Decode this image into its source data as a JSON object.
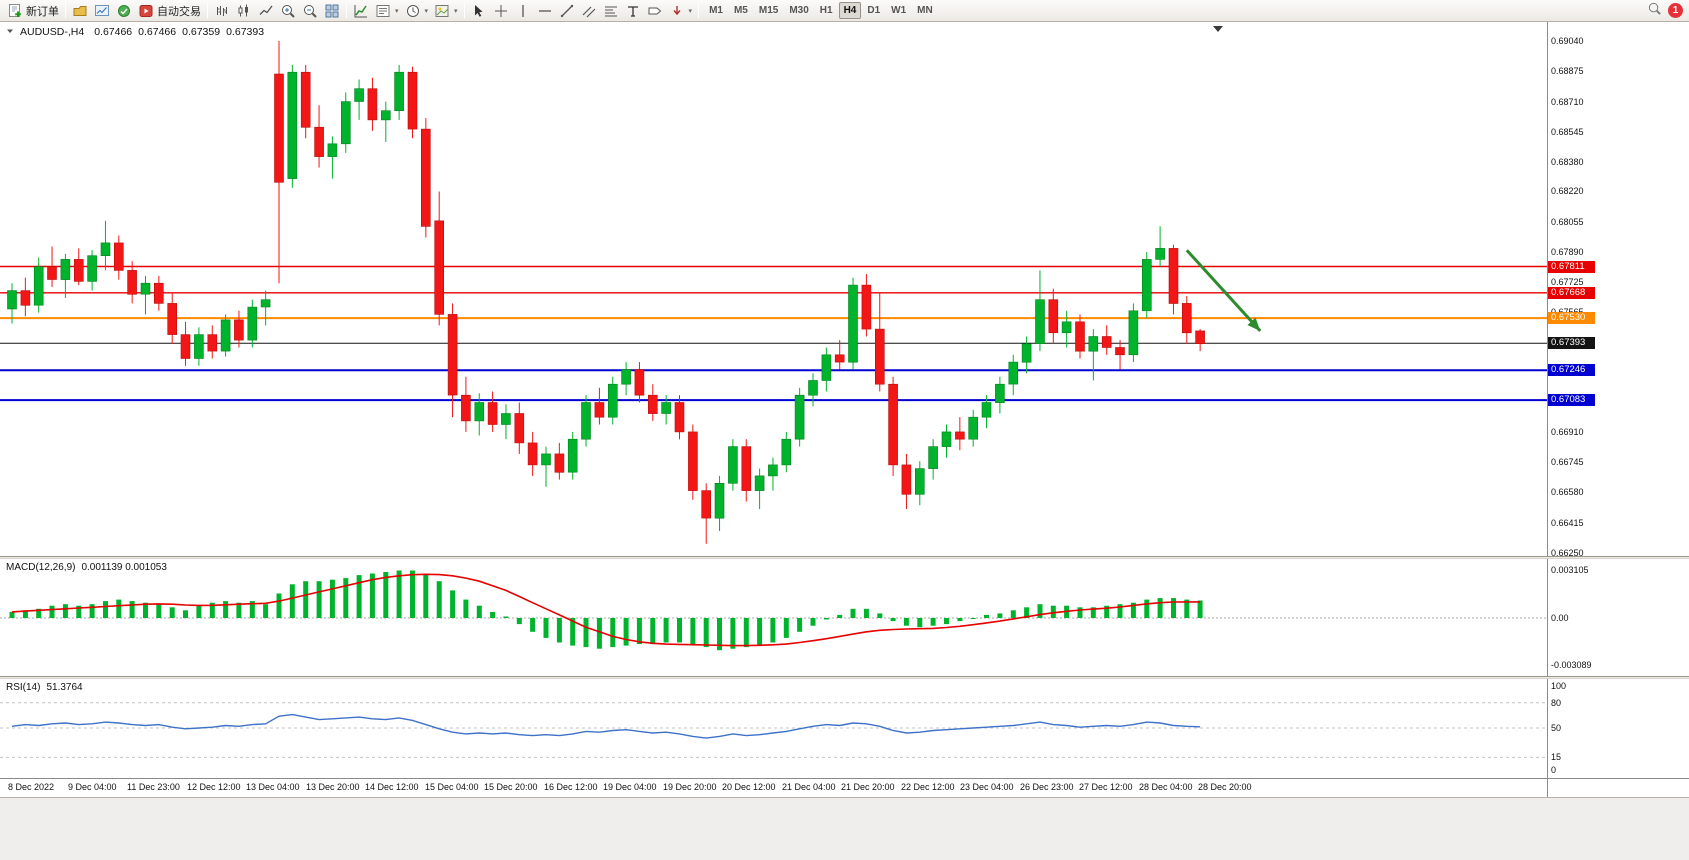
{
  "toolbar": {
    "new_order_label": "新订单",
    "autotrade_label": "自动交易",
    "notification_badge": "1",
    "timeframes": [
      {
        "label": "M1",
        "active": false
      },
      {
        "label": "M5",
        "active": false
      },
      {
        "label": "M15",
        "active": false
      },
      {
        "label": "M30",
        "active": false
      },
      {
        "label": "H1",
        "active": false
      },
      {
        "label": "H4",
        "active": true
      },
      {
        "label": "D1",
        "active": false
      },
      {
        "label": "W1",
        "active": false
      },
      {
        "label": "MN",
        "active": false
      }
    ]
  },
  "icons": {
    "new-order-icon": "document-plus",
    "profiles-icon": "folder",
    "charts-icon": "chart-window",
    "market-watch-icon": "green-circle",
    "autotrade-icon": "red-play",
    "bars-icon": "ohlc-bars",
    "candles-icon": "candlesticks",
    "line-chart-icon": "zigzag-line",
    "zoom-in-icon": "magnifier-plus",
    "zoom-out-icon": "magnifier-minus",
    "tile-windows-icon": "grid-2x2",
    "indicators-icon": "chart-arrow",
    "indicator-list-icon": "list",
    "period-icon": "clock",
    "template-icon": "picture",
    "cursor-icon": "pointer-arrow",
    "crosshair-icon": "cross",
    "vline-icon": "vertical-line",
    "hline-icon": "horizontal-line",
    "trendline-icon": "diagonal-line",
    "channel-icon": "parallel-lines",
    "fibo-icon": "stacked-lines",
    "text-icon": "letter-A",
    "label-icon": "tag",
    "arrows-icon": "down-arrow",
    "search-icon": "magnifier",
    "collapse-icon": "triangle-down",
    "chart-shift-marker": "triangle-down"
  },
  "chart": {
    "symbol_period": "AUDUSD-,H4",
    "open": "0.67466",
    "high": "0.67466",
    "low": "0.67359",
    "close": "0.67393"
  },
  "indicators": {
    "macd_label": "MACD(12,26,9)",
    "macd_values": "0.001139 0.001053",
    "rsi_label": "RSI(14)",
    "rsi_value": "51.3764"
  },
  "chart_data": [
    {
      "type": "candlestick",
      "symbol": "AUDUSD",
      "timeframe": "H4",
      "ohlc_display": [
        "0.67466",
        "0.67466",
        "0.67359",
        "0.67393"
      ],
      "up_color": "#00b32c",
      "down_color": "#f21616",
      "y_ticks": [
        "0.69040",
        "0.68875",
        "0.68710",
        "0.68545",
        "0.68380",
        "0.68220",
        "0.68055",
        "0.67890",
        "0.67725",
        "0.67565",
        "0.66910",
        "0.66745",
        "0.66580",
        "0.66415",
        "0.66250"
      ],
      "price_lines": [
        {
          "label": "0.67811",
          "color": "#e60000",
          "width": 1.4
        },
        {
          "label": "0.67668",
          "color": "#e60000",
          "width": 1.4
        },
        {
          "label": "0.67530",
          "color": "#ff8a00",
          "width": 2
        },
        {
          "label": "0.67393",
          "color": "#141414",
          "width": 1
        },
        {
          "label": "0.67246",
          "color": "#0000d0",
          "width": 2
        },
        {
          "label": "0.67083",
          "color": "#0000d0",
          "width": 2
        }
      ],
      "x_labels": [
        "8 Dec 2022",
        "9 Dec 04:00",
        "11 Dec 23:00",
        "12 Dec 12:00",
        "13 Dec 04:00",
        "13 Dec 20:00",
        "14 Dec 12:00",
        "15 Dec 04:00",
        "15 Dec 20:00",
        "16 Dec 12:00",
        "19 Dec 04:00",
        "19 Dec 20:00",
        "20 Dec 12:00",
        "21 Dec 04:00",
        "21 Dec 20:00",
        "22 Dec 12:00",
        "23 Dec 04:00",
        "26 Dec 23:00",
        "27 Dec 12:00",
        "28 Dec 04:00",
        "28 Dec 20:00"
      ],
      "candles": [
        [
          0.6758,
          0.6772,
          0.675,
          0.6768
        ],
        [
          0.6768,
          0.6775,
          0.6754,
          0.676
        ],
        [
          0.676,
          0.6786,
          0.6756,
          0.6781
        ],
        [
          0.6781,
          0.6792,
          0.677,
          0.6774
        ],
        [
          0.6774,
          0.6788,
          0.6764,
          0.6785
        ],
        [
          0.6785,
          0.6791,
          0.6771,
          0.6773
        ],
        [
          0.6773,
          0.679,
          0.6768,
          0.6787
        ],
        [
          0.6787,
          0.6806,
          0.6779,
          0.6794
        ],
        [
          0.6794,
          0.6798,
          0.6774,
          0.6779
        ],
        [
          0.6779,
          0.6784,
          0.6761,
          0.6766
        ],
        [
          0.6766,
          0.6776,
          0.6755,
          0.6772
        ],
        [
          0.6772,
          0.6776,
          0.6757,
          0.6761
        ],
        [
          0.6761,
          0.6767,
          0.6739,
          0.6744
        ],
        [
          0.6744,
          0.6751,
          0.6727,
          0.6731
        ],
        [
          0.6731,
          0.6748,
          0.6727,
          0.6744
        ],
        [
          0.6744,
          0.6749,
          0.6731,
          0.6735
        ],
        [
          0.6735,
          0.6755,
          0.6732,
          0.6752
        ],
        [
          0.6752,
          0.6757,
          0.6737,
          0.6741
        ],
        [
          0.6741,
          0.6763,
          0.6737,
          0.6759
        ],
        [
          0.6759,
          0.6768,
          0.6749,
          0.6763
        ],
        [
          0.6886,
          0.6904,
          0.6772,
          0.6827
        ],
        [
          0.6829,
          0.6891,
          0.6824,
          0.6887
        ],
        [
          0.6887,
          0.6891,
          0.6851,
          0.6857
        ],
        [
          0.6857,
          0.6869,
          0.6835,
          0.6841
        ],
        [
          0.6841,
          0.6852,
          0.6829,
          0.6848
        ],
        [
          0.6848,
          0.6876,
          0.6843,
          0.6871
        ],
        [
          0.6871,
          0.6883,
          0.6861,
          0.6878
        ],
        [
          0.6878,
          0.6884,
          0.6855,
          0.6861
        ],
        [
          0.6861,
          0.6871,
          0.6849,
          0.6866
        ],
        [
          0.6866,
          0.6891,
          0.6861,
          0.6887
        ],
        [
          0.6887,
          0.689,
          0.6851,
          0.6856
        ],
        [
          0.6856,
          0.6862,
          0.6797,
          0.6803
        ],
        [
          0.6806,
          0.6822,
          0.6749,
          0.6755
        ],
        [
          0.6755,
          0.6761,
          0.6699,
          0.6711
        ],
        [
          0.6711,
          0.6721,
          0.6691,
          0.6697
        ],
        [
          0.6697,
          0.6712,
          0.6689,
          0.6707
        ],
        [
          0.6707,
          0.6713,
          0.6691,
          0.6695
        ],
        [
          0.6695,
          0.6706,
          0.6687,
          0.6701
        ],
        [
          0.6701,
          0.6707,
          0.6679,
          0.6685
        ],
        [
          0.6685,
          0.6691,
          0.6667,
          0.6673
        ],
        [
          0.6673,
          0.6683,
          0.6661,
          0.6679
        ],
        [
          0.6679,
          0.6685,
          0.6665,
          0.6669
        ],
        [
          0.6669,
          0.6691,
          0.6665,
          0.6687
        ],
        [
          0.6687,
          0.6711,
          0.6683,
          0.6707
        ],
        [
          0.6707,
          0.6715,
          0.6695,
          0.6699
        ],
        [
          0.6699,
          0.6721,
          0.6695,
          0.6717
        ],
        [
          0.6717,
          0.6729,
          0.6711,
          0.6725
        ],
        [
          0.6725,
          0.6729,
          0.6707,
          0.6711
        ],
        [
          0.6711,
          0.6717,
          0.6697,
          0.6701
        ],
        [
          0.6701,
          0.6711,
          0.6695,
          0.6707
        ],
        [
          0.6707,
          0.6711,
          0.6687,
          0.6691
        ],
        [
          0.6691,
          0.6695,
          0.6654,
          0.6659
        ],
        [
          0.6659,
          0.6663,
          0.663,
          0.6644
        ],
        [
          0.6644,
          0.6667,
          0.6637,
          0.6663
        ],
        [
          0.6663,
          0.6687,
          0.6659,
          0.6683
        ],
        [
          0.6683,
          0.6687,
          0.6653,
          0.6659
        ],
        [
          0.6659,
          0.6671,
          0.6649,
          0.6667
        ],
        [
          0.6667,
          0.6677,
          0.6659,
          0.6673
        ],
        [
          0.6673,
          0.6691,
          0.6669,
          0.6687
        ],
        [
          0.6687,
          0.6715,
          0.6683,
          0.6711
        ],
        [
          0.6711,
          0.6723,
          0.6705,
          0.6719
        ],
        [
          0.6719,
          0.6737,
          0.6713,
          0.6733
        ],
        [
          0.6733,
          0.6741,
          0.6725,
          0.6729
        ],
        [
          0.6729,
          0.6775,
          0.6725,
          0.6771
        ],
        [
          0.6771,
          0.6777,
          0.6743,
          0.6747
        ],
        [
          0.6747,
          0.6767,
          0.6713,
          0.6717
        ],
        [
          0.6717,
          0.6721,
          0.6667,
          0.6673
        ],
        [
          0.6673,
          0.6679,
          0.6649,
          0.6657
        ],
        [
          0.6657,
          0.6675,
          0.6651,
          0.6671
        ],
        [
          0.6671,
          0.6687,
          0.6665,
          0.6683
        ],
        [
          0.6683,
          0.6695,
          0.6677,
          0.6691
        ],
        [
          0.6691,
          0.6699,
          0.6681,
          0.6687
        ],
        [
          0.6687,
          0.6703,
          0.6683,
          0.6699
        ],
        [
          0.6699,
          0.6711,
          0.6693,
          0.6707
        ],
        [
          0.6707,
          0.6721,
          0.6701,
          0.6717
        ],
        [
          0.6717,
          0.6733,
          0.6711,
          0.6729
        ],
        [
          0.6729,
          0.6743,
          0.6723,
          0.6739
        ],
        [
          0.6739,
          0.6779,
          0.6735,
          0.6763
        ],
        [
          0.6763,
          0.6769,
          0.6739,
          0.6745
        ],
        [
          0.6745,
          0.6757,
          0.6737,
          0.6751
        ],
        [
          0.6751,
          0.6755,
          0.6731,
          0.6735
        ],
        [
          0.6735,
          0.6747,
          0.6719,
          0.6743
        ],
        [
          0.6743,
          0.6749,
          0.6733,
          0.6737
        ],
        [
          0.6737,
          0.6741,
          0.6725,
          0.6733
        ],
        [
          0.6733,
          0.6761,
          0.6729,
          0.6757
        ],
        [
          0.6757,
          0.6789,
          0.6753,
          0.6785
        ],
        [
          0.6785,
          0.6803,
          0.6781,
          0.6791
        ],
        [
          0.6791,
          0.6793,
          0.6755,
          0.6761
        ],
        [
          0.6761,
          0.6765,
          0.6739,
          0.6745
        ],
        [
          0.6746,
          0.6747,
          0.6735,
          0.6739
        ]
      ],
      "annotations": [
        {
          "type": "arrow",
          "color": "#2e8b2e",
          "from_bar": 88,
          "from_price": 0.679,
          "to_bar": 93.5,
          "to_price": 0.6746
        }
      ]
    },
    {
      "type": "macd_histogram",
      "label": "MACD(12,26,9)",
      "main_value": 0.001139,
      "signal_value": 0.001053,
      "scale_labels": [
        "0.003105",
        "0.00",
        "-0.003089"
      ],
      "histogram_color": "#00b32c",
      "signal_color": "#e60000",
      "histogram": [
        0.0004,
        0.0005,
        0.0006,
        0.0008,
        0.0009,
        0.0008,
        0.0009,
        0.0011,
        0.0012,
        0.0011,
        0.001,
        0.0009,
        0.0007,
        0.0005,
        0.0008,
        0.001,
        0.0011,
        0.001,
        0.0011,
        0.0009,
        0.0016,
        0.0022,
        0.0024,
        0.0024,
        0.0025,
        0.0026,
        0.0028,
        0.0029,
        0.003,
        0.0031,
        0.0031,
        0.0029,
        0.0024,
        0.0018,
        0.0012,
        0.0008,
        0.0004,
        0.0001,
        -0.0004,
        -0.0009,
        -0.0013,
        -0.0016,
        -0.0018,
        -0.0019,
        -0.002,
        -0.0019,
        -0.0018,
        -0.0017,
        -0.0017,
        -0.0016,
        -0.0016,
        -0.0017,
        -0.0019,
        -0.0021,
        -0.002,
        -0.0019,
        -0.0018,
        -0.0016,
        -0.0013,
        -0.0009,
        -0.0005,
        -0.0001,
        0.0002,
        0.0006,
        0.0006,
        0.0003,
        -0.0002,
        -0.0005,
        -0.0006,
        -0.0005,
        -0.0004,
        -0.0002,
        0.0,
        0.0002,
        0.0003,
        0.0005,
        0.0007,
        0.0009,
        0.0008,
        0.0008,
        0.0007,
        0.0007,
        0.0008,
        0.0009,
        0.001,
        0.0012,
        0.0013,
        0.0013,
        0.0012,
        0.001139
      ],
      "signal": [
        0.0004,
        0.00045,
        0.0005,
        0.00055,
        0.0006,
        0.00065,
        0.0007,
        0.00075,
        0.0008,
        0.00085,
        0.0009,
        0.00092,
        0.0009,
        0.00085,
        0.00082,
        0.00083,
        0.00086,
        0.0009,
        0.00093,
        0.00096,
        0.0011,
        0.0013,
        0.0015,
        0.0017,
        0.0019,
        0.0021,
        0.0023,
        0.0025,
        0.00265,
        0.00275,
        0.00282,
        0.00285,
        0.00283,
        0.00275,
        0.0026,
        0.0024,
        0.0021,
        0.0018,
        0.0014,
        0.001,
        0.0006,
        0.0002,
        -0.0002,
        -0.0006,
        -0.0009,
        -0.0012,
        -0.0014,
        -0.00155,
        -0.00165,
        -0.0017,
        -0.00172,
        -0.00174,
        -0.00176,
        -0.00178,
        -0.0018,
        -0.0018,
        -0.00178,
        -0.00175,
        -0.0017,
        -0.0016,
        -0.00148,
        -0.00135,
        -0.0012,
        -0.00105,
        -0.0009,
        -0.0008,
        -0.00075,
        -0.00072,
        -0.0007,
        -0.00068,
        -0.00062,
        -0.00054,
        -0.00044,
        -0.00032,
        -0.0002,
        -6e-05,
        8e-05,
        0.00022,
        0.00034,
        0.00044,
        0.00052,
        0.00058,
        0.00064,
        0.00072,
        0.00082,
        0.00092,
        0.001,
        0.00104,
        0.00105,
        0.001053
      ]
    },
    {
      "type": "line",
      "label": "RSI(14)",
      "value": 51.3764,
      "levels": [
        "100",
        "80",
        "50",
        "15",
        "0"
      ],
      "dashed_levels": [
        80,
        50,
        15
      ],
      "line_color": "#3e71c8",
      "series": [
        52,
        54,
        53,
        55,
        56,
        54,
        55,
        57,
        56,
        54,
        53,
        54,
        51,
        49,
        50,
        51,
        53,
        52,
        54,
        55,
        64,
        66,
        63,
        60,
        61,
        62,
        63,
        61,
        60,
        62,
        59,
        54,
        49,
        45,
        43,
        44,
        43,
        44,
        42,
        41,
        42,
        41,
        43,
        46,
        45,
        47,
        48,
        46,
        44,
        45,
        43,
        40,
        38,
        40,
        43,
        41,
        42,
        44,
        46,
        49,
        52,
        54,
        53,
        56,
        55,
        52,
        47,
        44,
        45,
        47,
        48,
        49,
        50,
        51,
        52,
        53,
        55,
        57,
        54,
        53,
        51,
        52,
        53,
        52,
        54,
        57,
        56,
        53,
        52,
        51.4
      ]
    }
  ]
}
